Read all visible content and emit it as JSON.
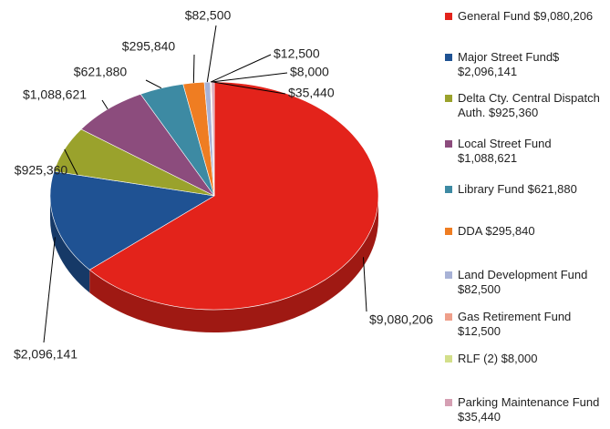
{
  "chart_data": {
    "type": "pie",
    "categories": [
      "General Fund $9,080,206",
      "Major Street Fund$ $2,096,141",
      "Delta Cty. Central Dispatch Auth. $925,360",
      "Local Street Fund $1,088,621",
      "Library Fund $621,880",
      "DDA $295,840",
      "Land Development Fund $82,500",
      "Gas Retirement Fund $12,500",
      "RLF (2) $8,000",
      "Parking Maintenance Fund $35,440"
    ],
    "values": [
      9080206,
      2096141,
      925360,
      1088621,
      621880,
      295840,
      82500,
      12500,
      8000,
      35440
    ],
    "value_labels": [
      "$9,080,206",
      "$2,096,141",
      "$925,360",
      "$1,088,621",
      "$621,880",
      "$295,840",
      "$82,500",
      "$12,500",
      "$8,000",
      "$35,440"
    ],
    "colors": [
      "#e3231b",
      "#1f5293",
      "#9aa22c",
      "#8c4c7d",
      "#3d8aa3",
      "#ef7d22",
      "#a8b2d6",
      "#ef9f8a",
      "#d3df8a",
      "#d59fb3"
    ],
    "legend": "right"
  }
}
